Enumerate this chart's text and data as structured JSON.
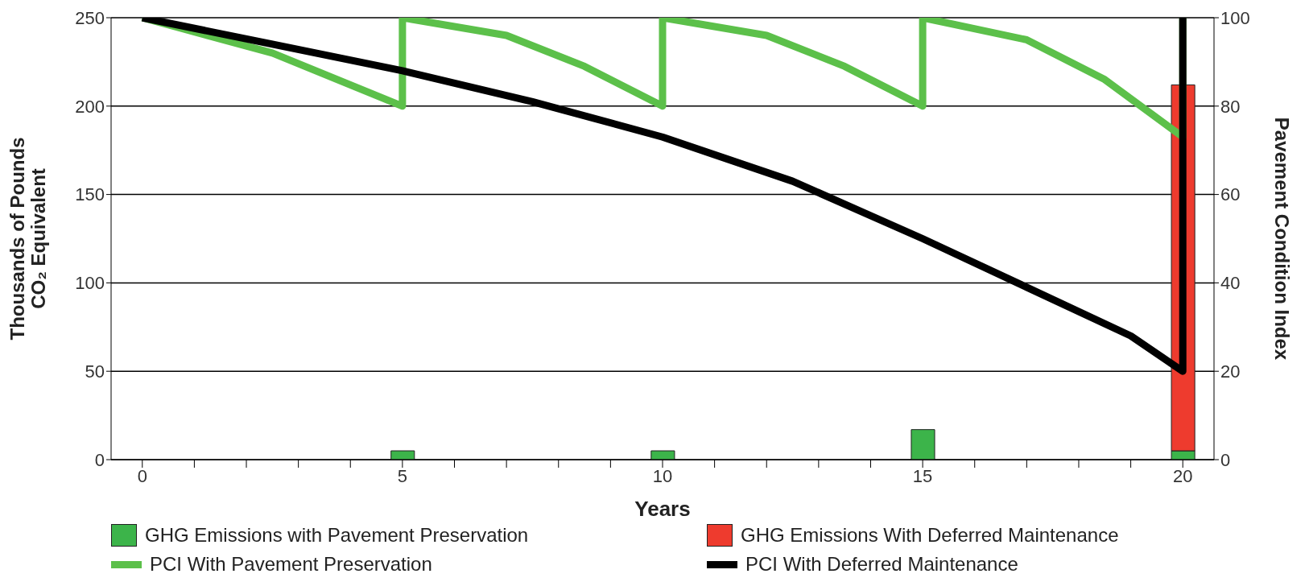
{
  "chart_data": {
    "type": "bar",
    "xlabel": "Years",
    "ylabel": "Thousands of Pounds CO₂ Equivalent",
    "y2label": "Pavement Condition Index",
    "stacked": true,
    "grid": "y",
    "legend": "bottom",
    "xlim": [
      -0.6,
      20.6
    ],
    "xticks": [
      0,
      {
        "value": 1,
        "label": null
      },
      {
        "value": 2,
        "label": null
      },
      {
        "value": 3,
        "label": null
      },
      {
        "value": 4,
        "label": null
      },
      5,
      {
        "value": 6,
        "label": null
      },
      {
        "value": 7,
        "label": null
      },
      {
        "value": 8,
        "label": null
      },
      {
        "value": 9,
        "label": null
      },
      10,
      {
        "value": 11,
        "label": null
      },
      {
        "value": 12,
        "label": null
      },
      {
        "value": 13,
        "label": null
      },
      {
        "value": 14,
        "label": null
      },
      15,
      {
        "value": 16,
        "label": null
      },
      {
        "value": 17,
        "label": null
      },
      {
        "value": 18,
        "label": null
      },
      {
        "value": 19,
        "label": null
      },
      20
    ],
    "ylim": [
      0,
      250
    ],
    "yticks": [
      0,
      50,
      100,
      150,
      200,
      250
    ],
    "y2lim": [
      0,
      100
    ],
    "y2ticks": [
      0,
      20,
      40,
      60,
      80,
      100
    ],
    "series": [
      {
        "name": "GHG Emissions with Pavement Preservation",
        "color": "#3cb44a",
        "x": [
          5,
          10,
          15,
          20
        ],
        "values": [
          5,
          5,
          17,
          5
        ]
      },
      {
        "name": "GHG Emissions With Deferred Maintenance",
        "color": "#ee3b2e",
        "x": [
          20
        ],
        "values": [
          207
        ]
      },
      {
        "name": "PCI With Pavement Preservation",
        "type": "line",
        "axis": "y2",
        "color": "#5cc04a",
        "x": [
          0,
          2.5,
          5,
          5,
          7,
          8.5,
          10,
          10,
          12,
          13.5,
          15,
          15,
          17,
          18.5,
          20,
          20
        ],
        "values": [
          100,
          92,
          80,
          100,
          96,
          89,
          80,
          100,
          96,
          89,
          80,
          100,
          95,
          86,
          73,
          100
        ]
      },
      {
        "name": "PCI With Deferred Maintenance",
        "type": "line",
        "axis": "y2",
        "color": "#000000",
        "x": [
          0,
          2.5,
          5,
          7.5,
          10,
          12.5,
          15,
          17,
          19,
          20,
          20
        ],
        "values": [
          100,
          94,
          88,
          81,
          73,
          63,
          50,
          39,
          28,
          20,
          100
        ]
      }
    ]
  }
}
